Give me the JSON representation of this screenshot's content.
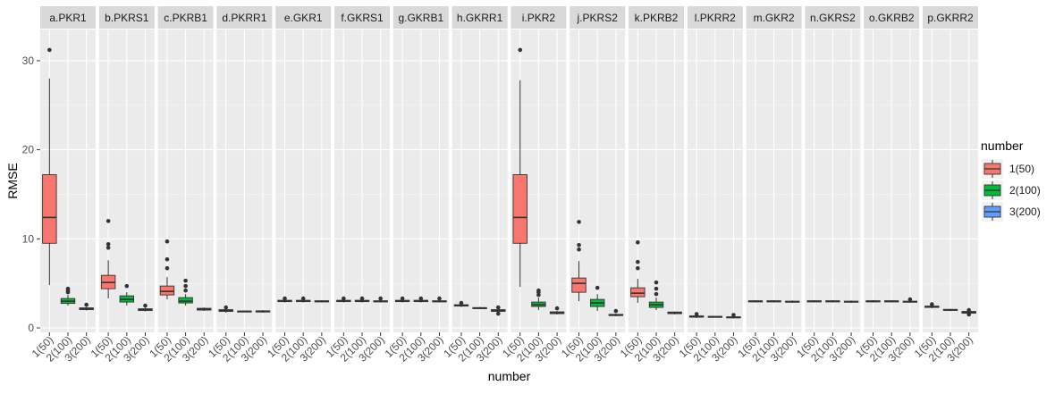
{
  "chart_data": {
    "type": "boxplot",
    "xlabel": "number",
    "ylabel": "RMSE",
    "ylim": [
      -0.5,
      33.5
    ],
    "y_ticks": [
      0,
      10,
      20,
      30
    ],
    "x_tick_labels": [
      "1(50)",
      "2(100)",
      "3(200)"
    ],
    "legend": {
      "title": "number",
      "position": "right",
      "entries": [
        {
          "label": "1(50)",
          "color": "#F8766D"
        },
        {
          "label": "2(100)",
          "color": "#00BA38"
        },
        {
          "label": "3(200)",
          "color": "#619CFF"
        }
      ]
    },
    "panels": [
      {
        "title": "a.PKR1",
        "boxes": [
          {
            "min": 4.8,
            "q1": 9.5,
            "median": 12.4,
            "q3": 17.2,
            "max": 28.0,
            "outliers": [
              31.2
            ]
          },
          {
            "min": 2.5,
            "q1": 2.75,
            "median": 3.0,
            "q3": 3.3,
            "max": 3.7,
            "outliers": [
              4.0,
              4.2,
              4.4
            ]
          },
          {
            "min": 1.95,
            "q1": 2.05,
            "median": 2.15,
            "q3": 2.25,
            "max": 2.35,
            "outliers": [
              2.6
            ]
          }
        ]
      },
      {
        "title": "b.PKRS1",
        "boxes": [
          {
            "min": 3.3,
            "q1": 4.4,
            "median": 5.1,
            "q3": 5.9,
            "max": 7.6,
            "outliers": [
              9.0,
              9.4,
              12.0
            ]
          },
          {
            "min": 2.5,
            "q1": 2.9,
            "median": 3.2,
            "q3": 3.6,
            "max": 4.0,
            "outliers": [
              4.7
            ]
          },
          {
            "min": 1.85,
            "q1": 1.95,
            "median": 2.05,
            "q3": 2.15,
            "max": 2.25,
            "outliers": [
              2.5
            ]
          }
        ]
      },
      {
        "title": "c.PKRB1",
        "boxes": [
          {
            "min": 3.2,
            "q1": 3.7,
            "median": 4.1,
            "q3": 4.7,
            "max": 5.7,
            "outliers": [
              6.7,
              7.7,
              9.7
            ]
          },
          {
            "min": 2.5,
            "q1": 2.8,
            "median": 3.0,
            "q3": 3.4,
            "max": 3.8,
            "outliers": [
              4.2,
              4.7,
              5.3
            ]
          },
          {
            "min": 1.9,
            "q1": 2.0,
            "median": 2.1,
            "q3": 2.2,
            "max": 2.3,
            "outliers": []
          }
        ]
      },
      {
        "title": "d.PKRR1",
        "boxes": [
          {
            "min": 1.7,
            "q1": 1.85,
            "median": 1.95,
            "q3": 2.05,
            "max": 2.15,
            "outliers": [
              2.3
            ]
          },
          {
            "min": 1.75,
            "q1": 1.8,
            "median": 1.85,
            "q3": 1.9,
            "max": 1.95,
            "outliers": []
          },
          {
            "min": 1.7,
            "q1": 1.78,
            "median": 1.85,
            "q3": 1.92,
            "max": 2.0,
            "outliers": []
          }
        ]
      },
      {
        "title": "e.GKR1",
        "boxes": [
          {
            "min": 2.85,
            "q1": 2.95,
            "median": 3.02,
            "q3": 3.1,
            "max": 3.2,
            "outliers": [
              3.3
            ]
          },
          {
            "min": 2.85,
            "q1": 2.95,
            "median": 3.02,
            "q3": 3.1,
            "max": 3.2,
            "outliers": [
              3.3
            ]
          },
          {
            "min": 2.85,
            "q1": 2.92,
            "median": 2.98,
            "q3": 3.05,
            "max": 3.12,
            "outliers": []
          }
        ]
      },
      {
        "title": "f.GKRS1",
        "boxes": [
          {
            "min": 2.85,
            "q1": 2.95,
            "median": 3.02,
            "q3": 3.1,
            "max": 3.2,
            "outliers": [
              3.3
            ]
          },
          {
            "min": 2.85,
            "q1": 2.95,
            "median": 3.02,
            "q3": 3.1,
            "max": 3.2,
            "outliers": [
              3.3
            ]
          },
          {
            "min": 2.85,
            "q1": 2.92,
            "median": 2.98,
            "q3": 3.05,
            "max": 3.15,
            "outliers": [
              3.3
            ]
          }
        ]
      },
      {
        "title": "g.GKRB1",
        "boxes": [
          {
            "min": 2.85,
            "q1": 2.95,
            "median": 3.02,
            "q3": 3.1,
            "max": 3.2,
            "outliers": [
              3.3
            ]
          },
          {
            "min": 2.85,
            "q1": 2.95,
            "median": 3.02,
            "q3": 3.1,
            "max": 3.2,
            "outliers": [
              3.3
            ]
          },
          {
            "min": 2.85,
            "q1": 2.92,
            "median": 2.98,
            "q3": 3.05,
            "max": 3.15,
            "outliers": [
              3.3
            ]
          }
        ]
      },
      {
        "title": "h.GKRR1",
        "boxes": [
          {
            "min": 2.35,
            "q1": 2.45,
            "median": 2.52,
            "q3": 2.6,
            "max": 2.7,
            "outliers": [
              2.8
            ]
          },
          {
            "min": 2.1,
            "q1": 2.18,
            "median": 2.22,
            "q3": 2.28,
            "max": 2.35,
            "outliers": []
          },
          {
            "min": 1.7,
            "q1": 1.85,
            "median": 1.95,
            "q3": 2.05,
            "max": 2.15,
            "outliers": [
              2.3,
              1.6
            ]
          }
        ]
      },
      {
        "title": "i.PKR2",
        "boxes": [
          {
            "min": 4.6,
            "q1": 9.5,
            "median": 12.4,
            "q3": 17.2,
            "max": 27.8,
            "outliers": [
              31.2
            ]
          },
          {
            "min": 2.0,
            "q1": 2.4,
            "median": 2.6,
            "q3": 2.9,
            "max": 3.4,
            "outliers": [
              3.7,
              4.0,
              4.2
            ]
          },
          {
            "min": 1.5,
            "q1": 1.6,
            "median": 1.7,
            "q3": 1.8,
            "max": 1.9,
            "outliers": [
              2.2
            ]
          }
        ]
      },
      {
        "title": "j.PKRS2",
        "boxes": [
          {
            "min": 3.0,
            "q1": 4.0,
            "median": 5.0,
            "q3": 5.6,
            "max": 7.5,
            "outliers": [
              8.8,
              9.3,
              11.9
            ]
          },
          {
            "min": 1.9,
            "q1": 2.4,
            "median": 2.8,
            "q3": 3.2,
            "max": 3.8,
            "outliers": [
              4.5
            ]
          },
          {
            "min": 1.3,
            "q1": 1.38,
            "median": 1.45,
            "q3": 1.52,
            "max": 1.6,
            "outliers": [
              1.9
            ]
          }
        ]
      },
      {
        "title": "k.PKRB2",
        "boxes": [
          {
            "min": 2.8,
            "q1": 3.5,
            "median": 3.9,
            "q3": 4.5,
            "max": 5.5,
            "outliers": [
              6.7,
              7.4,
              9.6
            ]
          },
          {
            "min": 2.0,
            "q1": 2.3,
            "median": 2.6,
            "q3": 2.9,
            "max": 3.4,
            "outliers": [
              3.8,
              4.4,
              5.1
            ]
          },
          {
            "min": 1.5,
            "q1": 1.6,
            "median": 1.7,
            "q3": 1.78,
            "max": 1.85,
            "outliers": []
          }
        ]
      },
      {
        "title": "l.PKRR2",
        "boxes": [
          {
            "min": 1.1,
            "q1": 1.2,
            "median": 1.28,
            "q3": 1.35,
            "max": 1.45,
            "outliers": [
              1.55
            ]
          },
          {
            "min": 1.15,
            "q1": 1.2,
            "median": 1.25,
            "q3": 1.3,
            "max": 1.35,
            "outliers": []
          },
          {
            "min": 1.05,
            "q1": 1.12,
            "median": 1.18,
            "q3": 1.25,
            "max": 1.32,
            "outliers": [
              1.45
            ]
          }
        ]
      },
      {
        "title": "m.GKR2",
        "boxes": [
          {
            "min": 2.85,
            "q1": 2.92,
            "median": 2.98,
            "q3": 3.05,
            "max": 3.12,
            "outliers": []
          },
          {
            "min": 2.85,
            "q1": 2.92,
            "median": 2.98,
            "q3": 3.05,
            "max": 3.12,
            "outliers": []
          },
          {
            "min": 2.8,
            "q1": 2.88,
            "median": 2.94,
            "q3": 3.0,
            "max": 3.08,
            "outliers": []
          }
        ]
      },
      {
        "title": "n.GKRS2",
        "boxes": [
          {
            "min": 2.85,
            "q1": 2.92,
            "median": 2.98,
            "q3": 3.05,
            "max": 3.12,
            "outliers": []
          },
          {
            "min": 2.85,
            "q1": 2.92,
            "median": 2.98,
            "q3": 3.05,
            "max": 3.12,
            "outliers": []
          },
          {
            "min": 2.8,
            "q1": 2.88,
            "median": 2.94,
            "q3": 3.0,
            "max": 3.08,
            "outliers": []
          }
        ]
      },
      {
        "title": "o.GKRB2",
        "boxes": [
          {
            "min": 2.85,
            "q1": 2.92,
            "median": 2.98,
            "q3": 3.05,
            "max": 3.12,
            "outliers": []
          },
          {
            "min": 2.85,
            "q1": 2.92,
            "median": 2.98,
            "q3": 3.05,
            "max": 3.12,
            "outliers": []
          },
          {
            "min": 2.8,
            "q1": 2.88,
            "median": 2.94,
            "q3": 3.0,
            "max": 3.08,
            "outliers": [
              3.2
            ]
          }
        ]
      },
      {
        "title": "p.GKRR2",
        "boxes": [
          {
            "min": 2.2,
            "q1": 2.3,
            "median": 2.38,
            "q3": 2.45,
            "max": 2.55,
            "outliers": [
              2.65
            ]
          },
          {
            "min": 1.9,
            "q1": 1.98,
            "median": 2.03,
            "q3": 2.08,
            "max": 2.15,
            "outliers": []
          },
          {
            "min": 1.55,
            "q1": 1.65,
            "median": 1.75,
            "q3": 1.85,
            "max": 1.95,
            "outliers": [
              2.0,
              1.5
            ]
          }
        ]
      }
    ]
  }
}
